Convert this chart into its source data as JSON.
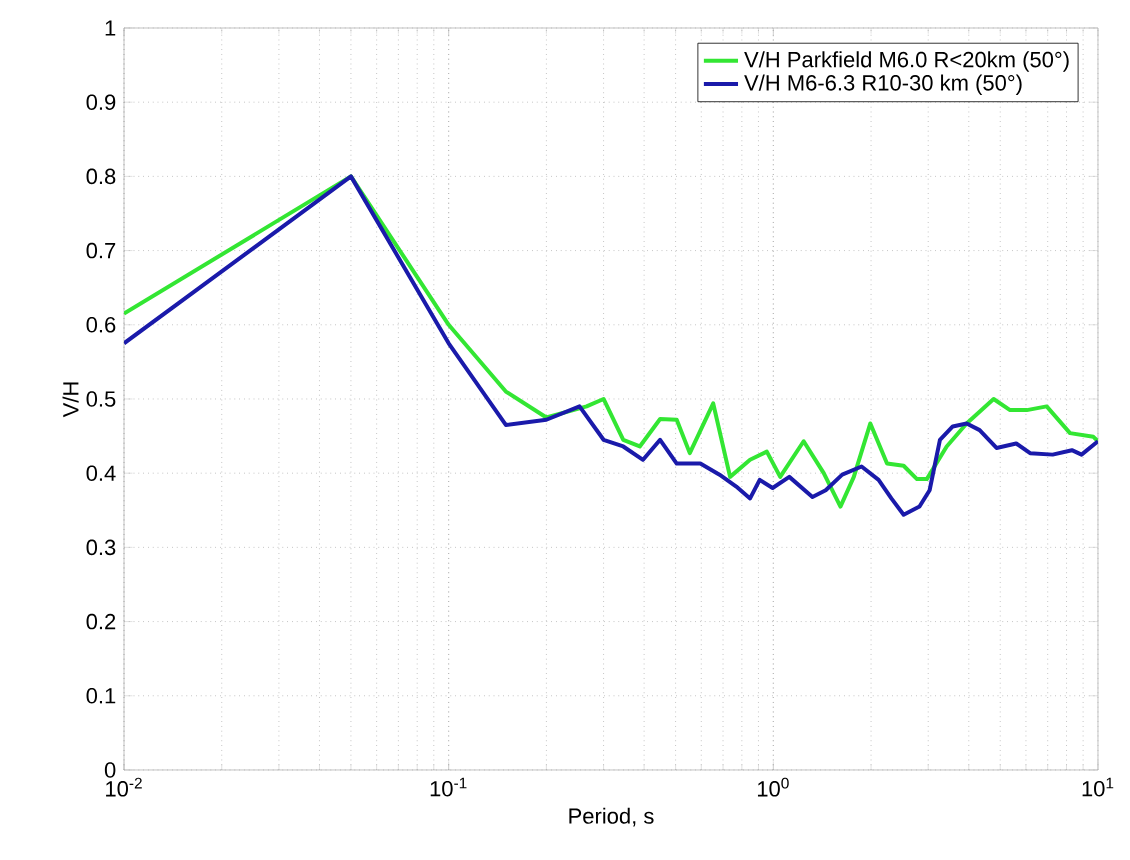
{
  "chart_data": {
    "type": "line",
    "xlabel": "Period, s",
    "ylabel": "V/H",
    "log": "x",
    "xlim": [
      0.01,
      10
    ],
    "ylim": [
      0,
      1
    ],
    "xticks": [
      {
        "value": 0.01,
        "label": "10$^{-2}$"
      },
      {
        "value": 0.1,
        "label": "10$^{-1}$"
      },
      {
        "value": 1,
        "label": "10$^{0}$"
      },
      {
        "value": 10,
        "label": "10$^{1}$"
      }
    ],
    "yticks": [
      0,
      0.1,
      0.2,
      0.3,
      0.4,
      0.5,
      0.6,
      0.7,
      0.8,
      0.9,
      1
    ],
    "grid": true,
    "legend": "top right",
    "marker": "none",
    "line_style": "solid",
    "series": [
      {
        "name": "V/H Parkfield M6.0 R<20km (50°)",
        "color": "#33e633",
        "x": [
          0.01,
          0.05,
          0.1,
          0.15,
          0.2,
          0.266,
          0.3,
          0.345,
          0.388,
          0.448,
          0.504,
          0.553,
          0.653,
          0.736,
          0.848,
          0.955,
          1.05,
          1.24,
          1.43,
          1.61,
          1.77,
          1.99,
          2.24,
          2.52,
          2.77,
          2.97,
          3.42,
          3.94,
          4.77,
          5.36,
          6.04,
          6.95,
          8.2,
          9.68,
          10
        ],
        "values": [
          0.615,
          0.8,
          0.6,
          0.51,
          0.475,
          0.49,
          0.5,
          0.445,
          0.436,
          0.473,
          0.472,
          0.427,
          0.494,
          0.395,
          0.418,
          0.429,
          0.395,
          0.443,
          0.4,
          0.355,
          0.395,
          0.467,
          0.413,
          0.41,
          0.392,
          0.392,
          0.436,
          0.467,
          0.5,
          0.485,
          0.485,
          0.49,
          0.454,
          0.449,
          0.443
        ]
      },
      {
        "name": "V/H M6-6.3 R10-30 km (50°)",
        "color": "#1a1aaa",
        "x": [
          0.01,
          0.05,
          0.1,
          0.15,
          0.2,
          0.253,
          0.3,
          0.345,
          0.397,
          0.448,
          0.504,
          0.596,
          0.683,
          0.769,
          0.848,
          0.908,
          0.995,
          1.12,
          1.32,
          1.45,
          1.63,
          1.87,
          2.11,
          2.31,
          2.52,
          2.82,
          3.03,
          3.26,
          3.57,
          3.94,
          4.32,
          4.87,
          5.6,
          6.18,
          7.25,
          8.31,
          8.9,
          10
        ],
        "values": [
          0.575,
          0.8,
          0.575,
          0.465,
          0.472,
          0.49,
          0.445,
          0.436,
          0.418,
          0.445,
          0.413,
          0.413,
          0.398,
          0.382,
          0.366,
          0.391,
          0.38,
          0.395,
          0.368,
          0.377,
          0.398,
          0.409,
          0.391,
          0.366,
          0.344,
          0.355,
          0.377,
          0.445,
          0.463,
          0.467,
          0.458,
          0.434,
          0.44,
          0.427,
          0.425,
          0.431,
          0.425,
          0.443
        ]
      }
    ]
  }
}
